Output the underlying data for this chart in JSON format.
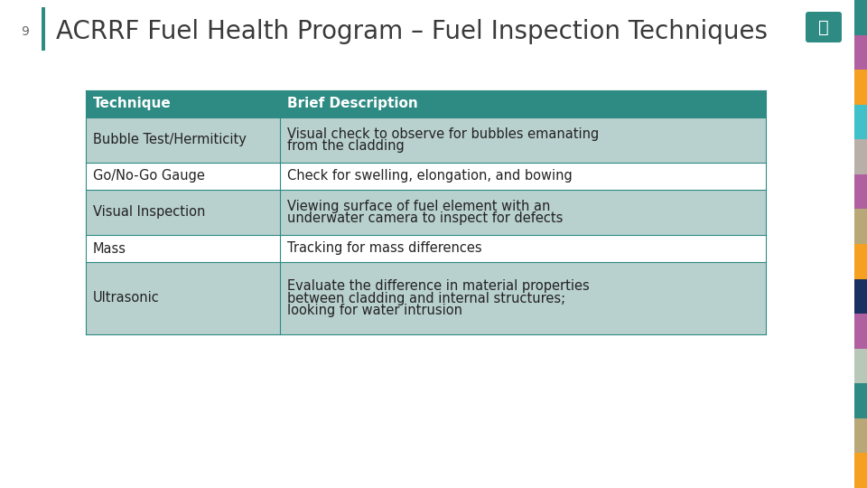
{
  "title": "ACRRF Fuel Health Program – Fuel Inspection Techniques",
  "slide_number": "9",
  "header_bg": "#2e8b84",
  "header_text_color": "#ffffff",
  "row_bg_odd": "#b8d0ce",
  "row_bg_even": "#ffffff",
  "table_border": "#2e8b84",
  "col1_header": "Technique",
  "col2_header": "Brief Description",
  "rows": [
    [
      "Bubble Test/Hermiticity",
      "Visual check to observe for bubbles emanating\nfrom the cladding"
    ],
    [
      "Go/No-Go Gauge",
      "Check for swelling, elongation, and bowing"
    ],
    [
      "Visual Inspection",
      "Viewing surface of fuel element with an\nunderwater camera to inspect for defects"
    ],
    [
      "Mass",
      "Tracking for mass differences"
    ],
    [
      "Ultrasonic",
      "Evaluate the difference in material properties\nbetween cladding and internal structures;\nlooking for water intrusion"
    ]
  ],
  "title_fontsize": 20,
  "table_fontsize": 10.5,
  "header_fontsize": 11,
  "slide_num_fontsize": 10,
  "teal_bar_color": "#2e8b84",
  "strip_colors": [
    "#2e8b84",
    "#b060a0",
    "#f5a020",
    "#40c0c8",
    "#b8b0a8",
    "#b060a0",
    "#b8a878",
    "#f5a020",
    "#1a3060",
    "#b060a0",
    "#b8c8b8",
    "#2e8b84",
    "#b8a878",
    "#f5a020"
  ],
  "background_color": "#ffffff",
  "title_color": "#3a3a3a",
  "icon_color": "#2e8b84",
  "left_bar_color": "#2e8b84"
}
